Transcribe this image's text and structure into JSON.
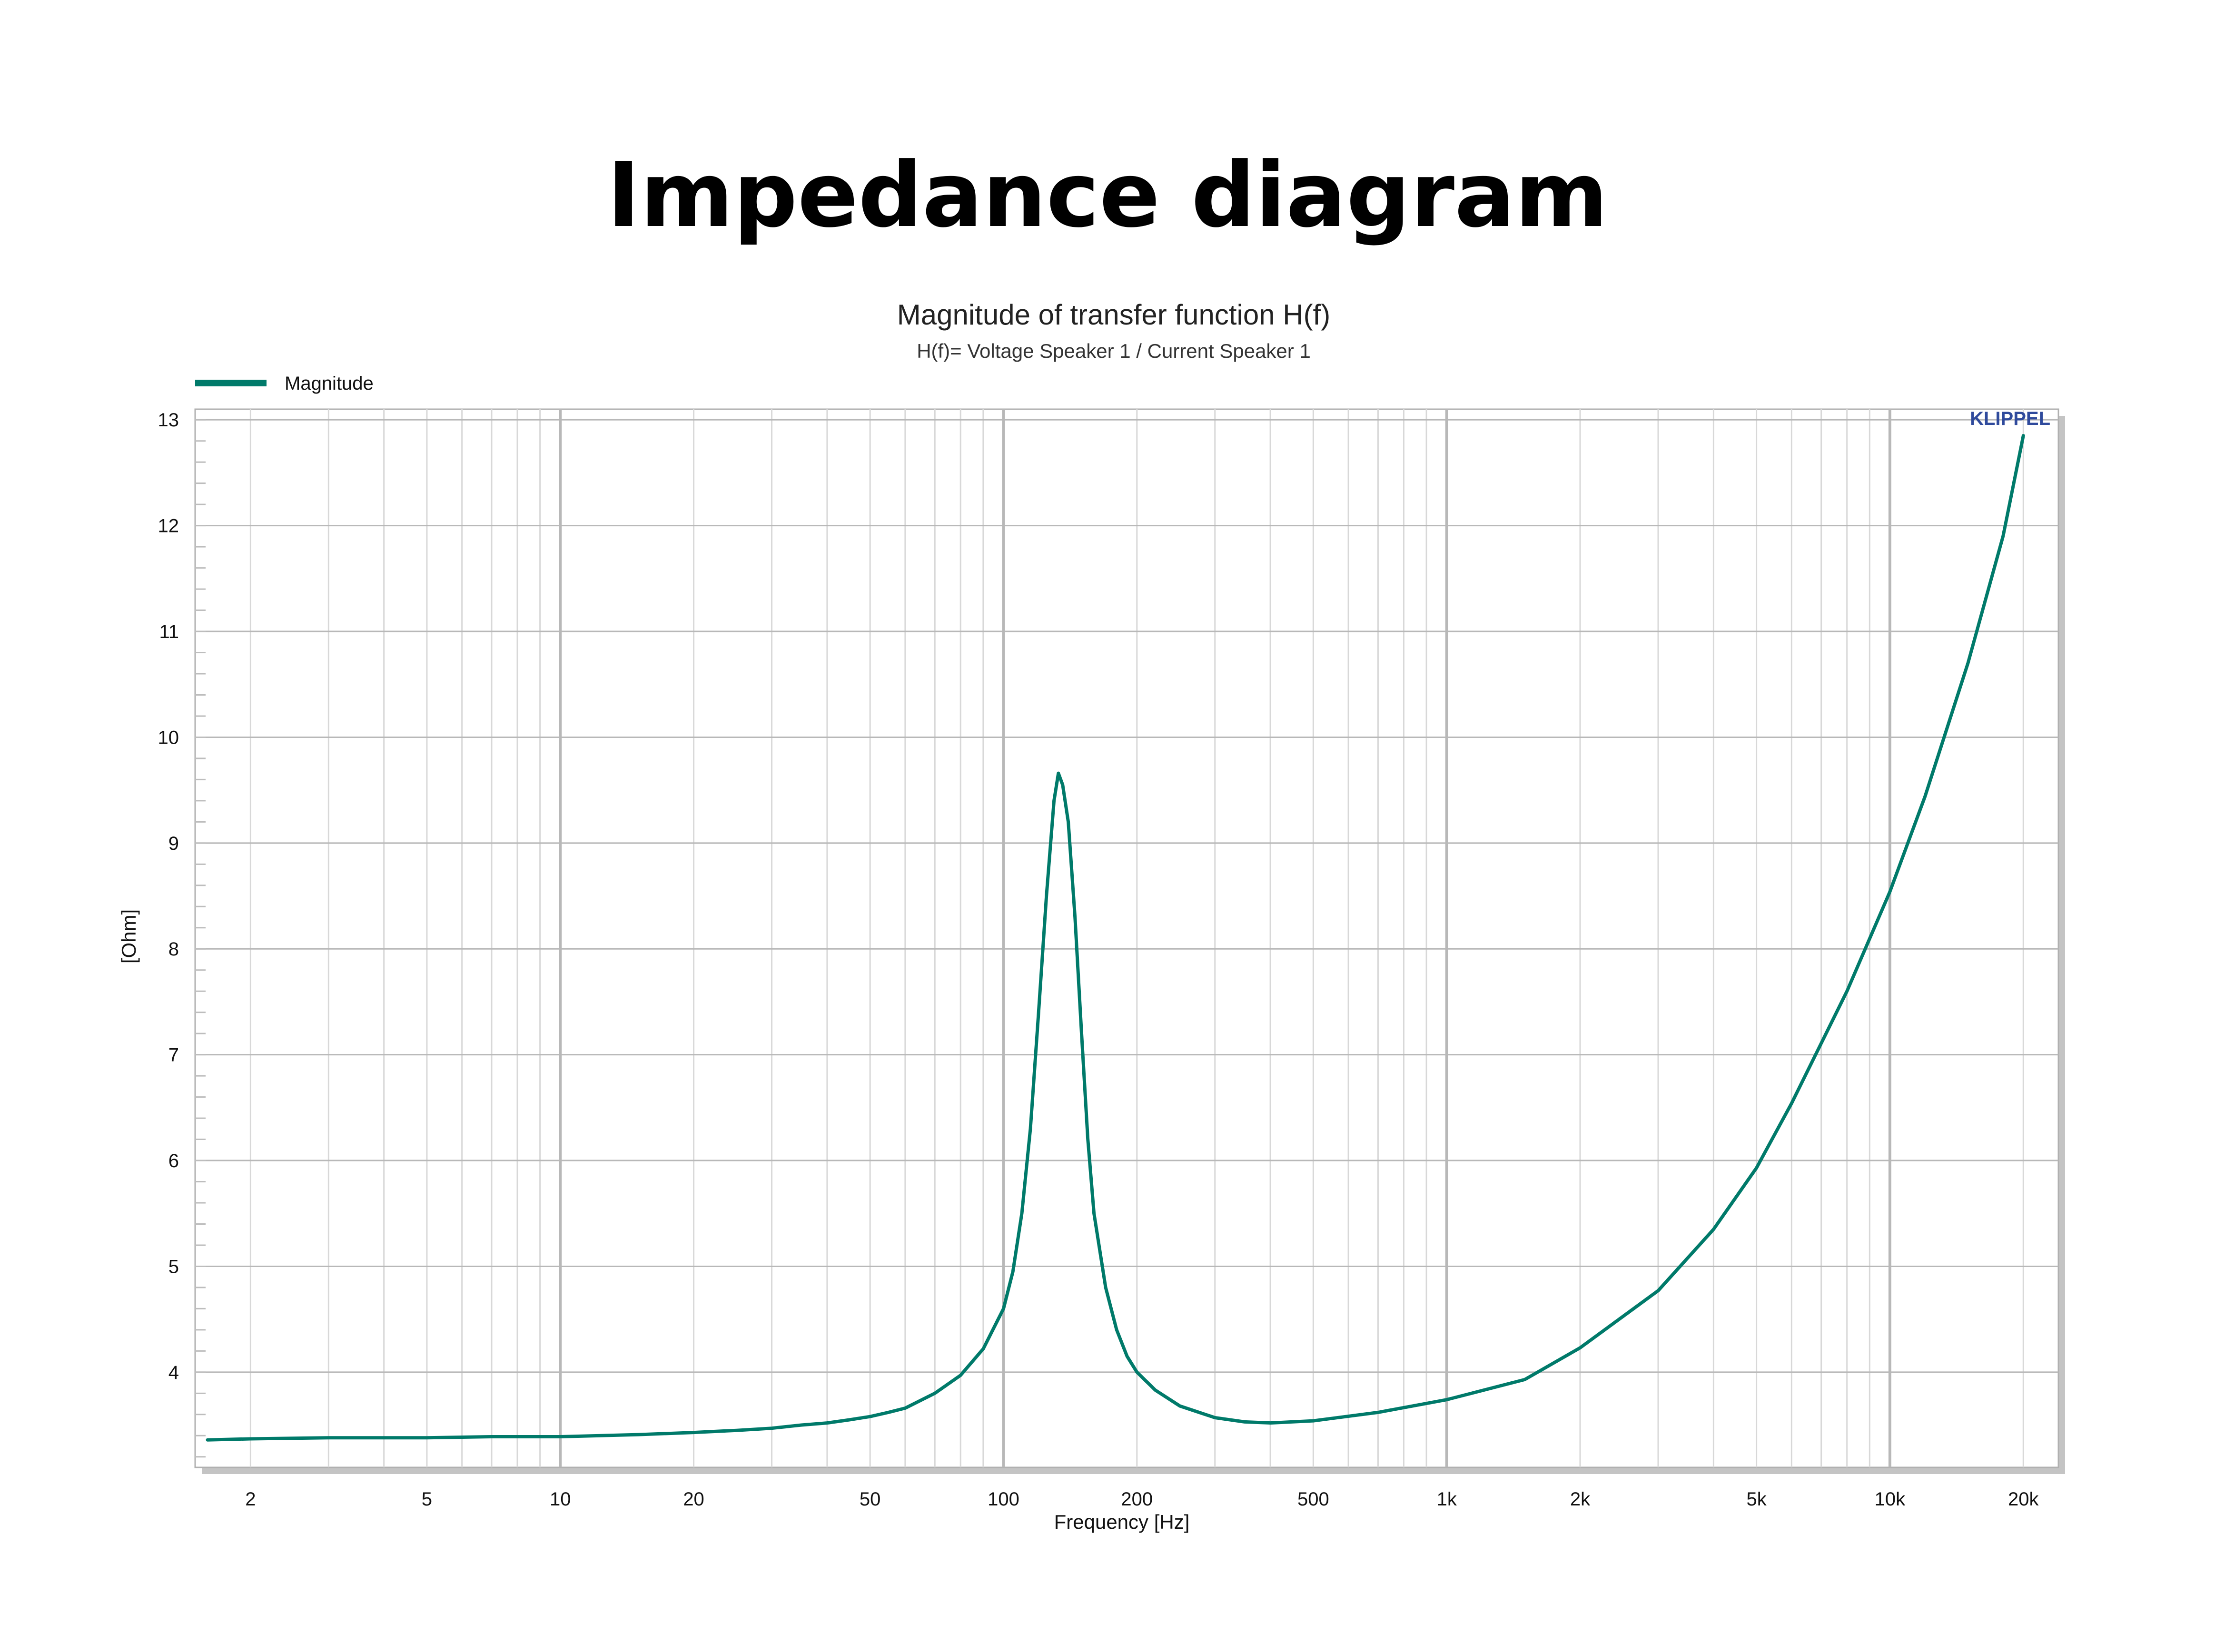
{
  "page_title": "Impedance diagram",
  "colors": {
    "series": "#007a6a",
    "grid_major": "#b8b8b8",
    "grid_minor": "#d8d8d8",
    "watermark": "#2f4a9c"
  },
  "chart_data": {
    "type": "line",
    "title": "Magnitude of transfer function H(f)",
    "subtitle": "H(f)= Voltage Speaker 1 / Current Speaker 1",
    "xlabel": "Frequency [Hz]",
    "ylabel": "[Ohm]",
    "x_scale": "log",
    "xlim": [
      1.5,
      24000
    ],
    "ylim": [
      3.1,
      13.1
    ],
    "grid": true,
    "legend_position": "top-left",
    "watermark": "KLIPPEL",
    "x_ticks": [
      {
        "value": 2,
        "label": "2"
      },
      {
        "value": 5,
        "label": "5"
      },
      {
        "value": 10,
        "label": "10"
      },
      {
        "value": 20,
        "label": "20"
      },
      {
        "value": 50,
        "label": "50"
      },
      {
        "value": 100,
        "label": "100"
      },
      {
        "value": 200,
        "label": "200"
      },
      {
        "value": 500,
        "label": "500"
      },
      {
        "value": 1000,
        "label": "1k"
      },
      {
        "value": 2000,
        "label": "2k"
      },
      {
        "value": 5000,
        "label": "5k"
      },
      {
        "value": 10000,
        "label": "10k"
      },
      {
        "value": 20000,
        "label": "20k"
      }
    ],
    "y_ticks": [
      {
        "value": 4,
        "label": "4"
      },
      {
        "value": 5,
        "label": "5"
      },
      {
        "value": 6,
        "label": "6"
      },
      {
        "value": 7,
        "label": "7"
      },
      {
        "value": 8,
        "label": "8"
      },
      {
        "value": 9,
        "label": "9"
      },
      {
        "value": 10,
        "label": "10"
      },
      {
        "value": 11,
        "label": "11"
      },
      {
        "value": 12,
        "label": "12"
      },
      {
        "value": 13,
        "label": "13"
      }
    ],
    "series": [
      {
        "name": "Magnitude",
        "x": [
          1.6,
          2,
          3,
          5,
          7,
          10,
          15,
          20,
          25,
          30,
          35,
          40,
          45,
          50,
          55,
          60,
          70,
          80,
          90,
          100,
          105,
          110,
          115,
          120,
          125,
          130,
          133,
          136,
          140,
          145,
          150,
          155,
          160,
          170,
          180,
          190,
          200,
          220,
          250,
          300,
          350,
          400,
          500,
          700,
          1000,
          1500,
          2000,
          3000,
          4000,
          5000,
          6000,
          8000,
          10000,
          12000,
          15000,
          18000,
          20000
        ],
        "y": [
          3.36,
          3.37,
          3.38,
          3.38,
          3.39,
          3.39,
          3.41,
          3.43,
          3.45,
          3.47,
          3.5,
          3.52,
          3.55,
          3.58,
          3.62,
          3.66,
          3.8,
          3.97,
          4.22,
          4.6,
          4.95,
          5.5,
          6.3,
          7.4,
          8.5,
          9.4,
          9.66,
          9.55,
          9.2,
          8.3,
          7.2,
          6.2,
          5.5,
          4.8,
          4.4,
          4.15,
          4.0,
          3.83,
          3.68,
          3.57,
          3.53,
          3.52,
          3.54,
          3.62,
          3.74,
          3.93,
          4.23,
          4.77,
          5.35,
          5.93,
          6.54,
          7.6,
          8.54,
          9.44,
          10.7,
          11.9,
          12.85
        ]
      }
    ]
  }
}
